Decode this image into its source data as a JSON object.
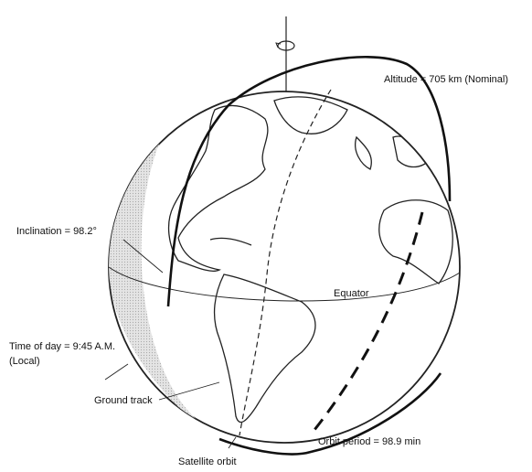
{
  "labels": {
    "altitude": "Altitude = 705 km (Nominal)",
    "inclination": "Inclination = 98.2°",
    "equator": "Equator",
    "time_of_day": "Time of day = 9:45 A.M.",
    "time_of_day_note": "(Local)",
    "ground_track": "Ground track",
    "orbit_period": "Orbit period = 98.9 min",
    "satellite_orbit": "Satellite orbit"
  }
}
